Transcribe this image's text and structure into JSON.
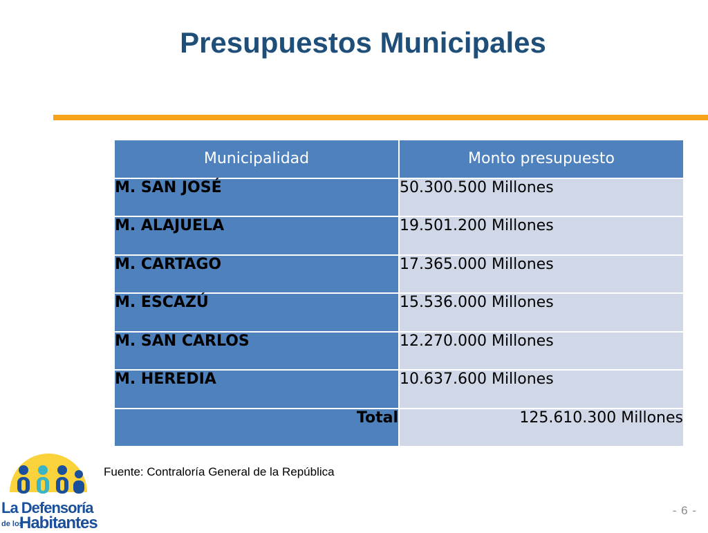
{
  "slide": {
    "title": "Presupuestos Municipales",
    "page_number": "- 6 -",
    "source": "Fuente: Contraloría General de la República"
  },
  "table": {
    "headers": [
      "Municipalidad",
      "Monto presupuesto"
    ],
    "rows": [
      {
        "name": "M. SAN JOSÉ",
        "amount": "50.300.500 Millones"
      },
      {
        "name": "M. ALAJUELA",
        "amount": "19.501.200 Millones"
      },
      {
        "name": "M. CARTAGO",
        "amount": "17.365.000 Millones"
      },
      {
        "name": "M. ESCAZÚ",
        "amount": "15.536.000 Millones"
      },
      {
        "name": "M. SAN CARLOS",
        "amount": "12.270.000 Millones"
      },
      {
        "name": "M. HEREDIA",
        "amount": "10.637.600 Millones"
      }
    ],
    "total_label": "Total",
    "total_amount": "125.610.300 Millones"
  },
  "logo": {
    "line1": "La Defensoría",
    "line2_prefix": "de los",
    "line2_main": "Habitantes"
  },
  "colors": {
    "title": "#1f4e79",
    "accent_bar": "#f7a21b",
    "header_fill": "#4f81bd",
    "cell_fill": "#d0d8e8"
  }
}
